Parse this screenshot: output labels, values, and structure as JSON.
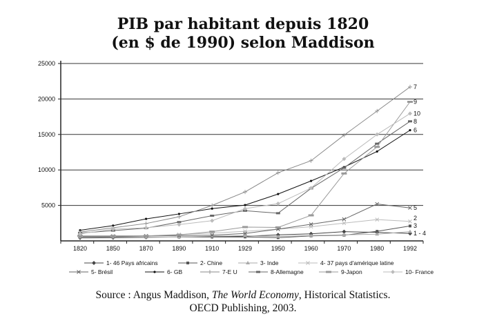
{
  "title_line1": "PIB par habitant depuis 1820",
  "title_line2": "(en $ de 1990) selon Maddison",
  "source": {
    "prefix": "Source : Angus Maddison, ",
    "book": "The World Economy",
    "suffix": ", Historical Statistics.",
    "line2": "OECD Publishing, 2003."
  },
  "chart_data": {
    "type": "line",
    "title": "PIB par habitant depuis 1820 (en $ de 1990) selon Maddison",
    "ylim": [
      0,
      25000
    ],
    "yticks": [
      "5000",
      "10000",
      "15000",
      "20000",
      "25000"
    ],
    "categories": [
      "1820",
      "1850",
      "1870",
      "1890",
      "1910",
      "1929",
      "1950",
      "1960",
      "1970",
      "1980",
      "1992"
    ],
    "series": [
      {
        "name": "1- 46 Pays africains",
        "end_label": "1 - 4",
        "color": "#444",
        "marker": "diamond",
        "values": [
          420,
          450,
          500,
          550,
          600,
          650,
          850,
          1000,
          1300,
          1200,
          1050
        ]
      },
      {
        "name": "2- Chine",
        "end_label": "2",
        "color": "#555",
        "marker": "square",
        "values": [
          600,
          600,
          550,
          550,
          550,
          560,
          450,
          700,
          800,
          1350,
          2100
        ]
      },
      {
        "name": "3- Inde",
        "end_label": "3",
        "color": "#aaa",
        "marker": "triangle",
        "values": [
          530,
          530,
          530,
          530,
          670,
          730,
          620,
          750,
          850,
          950,
          1300
        ]
      },
      {
        "name": "4- 37 pays d'amérique latine",
        "end_label": "",
        "color": "#bbb",
        "marker": "x",
        "values": [
          680,
          700,
          700,
          900,
          1100,
          1350,
          1650,
          2000,
          2500,
          3000,
          2750
        ]
      },
      {
        "name": "5- Brésil",
        "end_label": "5",
        "color": "#666",
        "marker": "x",
        "values": [
          650,
          650,
          700,
          750,
          800,
          1050,
          1650,
          2350,
          3050,
          5200,
          4650
        ]
      },
      {
        "name": "6- GB",
        "end_label": "6",
        "color": "#111",
        "marker": "dot",
        "values": [
          1500,
          2150,
          3100,
          3800,
          4550,
          5050,
          6600,
          8450,
          10400,
          12600,
          15600
        ]
      },
      {
        "name": "7-E U",
        "end_label": "7",
        "color": "#888",
        "marker": "plus",
        "values": [
          1250,
          1850,
          2450,
          3400,
          5000,
          6900,
          9600,
          11300,
          14900,
          18300,
          21700
        ]
      },
      {
        "name": "8-Allemagne",
        "end_label": "8",
        "color": "#666",
        "marker": "dash",
        "values": [
          1100,
          1450,
          1800,
          2650,
          3550,
          4250,
          3900,
          7400,
          10300,
          13700,
          16850
        ]
      },
      {
        "name": "9-Japon",
        "end_label": "9",
        "color": "#999",
        "marker": "bar",
        "values": [
          700,
          700,
          700,
          850,
          1300,
          1950,
          1900,
          3600,
          9500,
          13250,
          19600
        ]
      },
      {
        "name": "10- France",
        "end_label": "10",
        "color": "#bbb",
        "marker": "diamond",
        "values": [
          1000,
          1650,
          1850,
          2300,
          2850,
          4550,
          5250,
          7450,
          11550,
          15000,
          17950
        ]
      }
    ]
  }
}
